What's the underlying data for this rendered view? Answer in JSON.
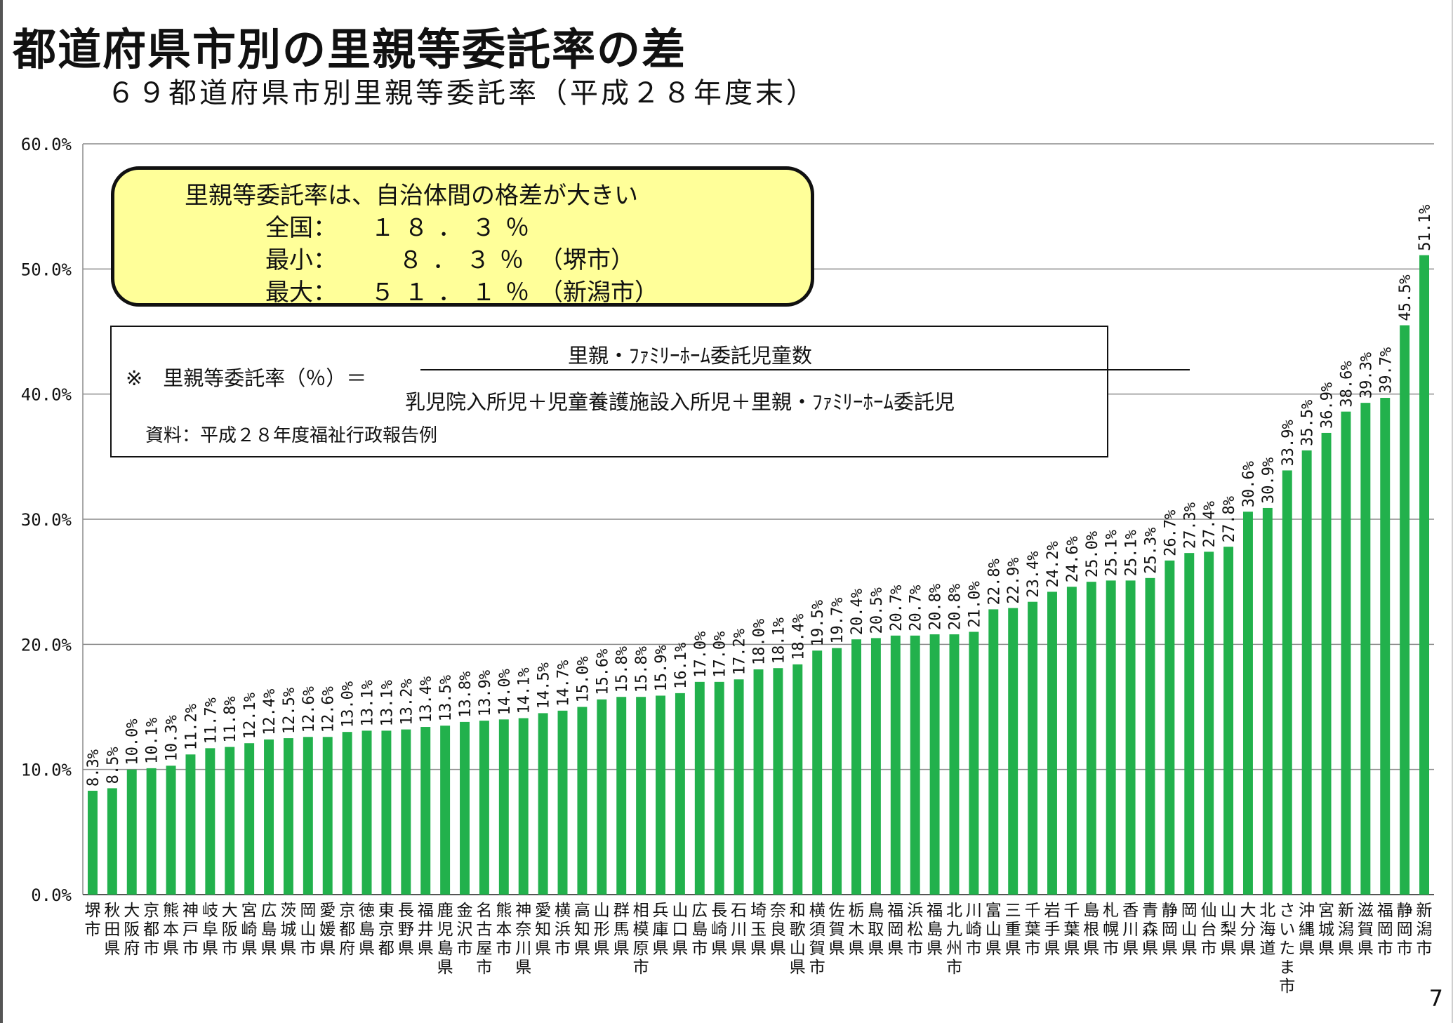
{
  "title": "都道府県市別の里親等委託率の差",
  "subtitle": "６９都道府県市別里親等委託率（平成２８年度末）",
  "callout": {
    "heading": "里親等委託率は、自治体間の格差が大きい",
    "rows": [
      {
        "label": "全国：",
        "value": "１８．３％",
        "note": ""
      },
      {
        "label": "最小：",
        "value": "８．３％",
        "note": "（堺市）"
      },
      {
        "label": "最大：",
        "value": "５１．１％",
        "note": "（新潟市）"
      }
    ]
  },
  "formula": {
    "lhs": "※　里親等委託率（％）＝",
    "numerator": "里親・ﾌｧﾐﾘｰﾎｰﾑ委託児童数",
    "denominator": "乳児院入所児＋児童養護施設入所児＋里親・ﾌｧﾐﾘｰﾎｰﾑ委託児",
    "source": "資料：平成２８年度福祉行政報告例"
  },
  "page_number": "7",
  "chart_data": {
    "type": "bar",
    "bar_color": "#22b14c",
    "grid": true,
    "ylim": [
      0,
      60
    ],
    "yticks": [
      "0.0%",
      "10.0%",
      "20.0%",
      "30.0%",
      "40.0%",
      "50.0%",
      "60.0%"
    ],
    "categories": [
      "堺市",
      "秋田県",
      "大阪府",
      "京都市",
      "熊本県",
      "神戸市",
      "岐阜県",
      "大阪市",
      "宮崎県",
      "広島県",
      "茨城県",
      "岡山市",
      "愛媛県",
      "京都府",
      "徳島県",
      "東京都",
      "長野県",
      "福井県",
      "鹿児島県",
      "金沢市",
      "名古屋市",
      "熊本市",
      "神奈川県",
      "愛知県",
      "横浜市",
      "高知県",
      "山形県",
      "群馬県",
      "相模原市",
      "兵庫県",
      "山口県",
      "広島市",
      "長崎県",
      "石川県",
      "埼玉県",
      "奈良県",
      "和歌山県",
      "横須賀市",
      "佐賀県",
      "栃木県",
      "鳥取県",
      "福岡県",
      "浜松市",
      "福島県",
      "北九州市",
      "川崎市",
      "富山県",
      "三重県",
      "千葉市",
      "岩手県",
      "千葉県",
      "島根県",
      "札幌市",
      "香川県",
      "青森県",
      "静岡県",
      "岡山県",
      "仙台市",
      "山梨県",
      "大分県",
      "北海道",
      "さいたま市",
      "沖縄県",
      "宮城県",
      "新潟県",
      "滋賀県",
      "福岡市",
      "静岡市",
      "新潟市"
    ],
    "values": [
      8.3,
      8.5,
      10.0,
      10.1,
      10.3,
      11.2,
      11.7,
      11.8,
      12.1,
      12.4,
      12.5,
      12.6,
      12.6,
      13.0,
      13.1,
      13.1,
      13.2,
      13.4,
      13.5,
      13.8,
      13.9,
      14.0,
      14.1,
      14.5,
      14.7,
      15.0,
      15.6,
      15.8,
      15.8,
      15.9,
      16.1,
      17.0,
      17.0,
      17.2,
      18.0,
      18.1,
      18.4,
      19.5,
      19.7,
      20.4,
      20.5,
      20.7,
      20.7,
      20.8,
      20.8,
      21.0,
      22.8,
      22.9,
      23.4,
      24.2,
      24.6,
      25.0,
      25.1,
      25.1,
      25.3,
      26.7,
      27.3,
      27.4,
      27.8,
      30.6,
      30.9,
      33.9,
      35.5,
      36.9,
      38.6,
      39.3,
      39.7,
      45.5,
      51.1
    ],
    "labels": [
      "8.3%",
      "8.5%",
      "10.0%",
      "10.1%",
      "10.3%",
      "11.2%",
      "11.7%",
      "11.8%",
      "12.1%",
      "12.4%",
      "12.5%",
      "12.6%",
      "12.6%",
      "13.0%",
      "13.1%",
      "13.1%",
      "13.2%",
      "13.4%",
      "13.5%",
      "13.8%",
      "13.9%",
      "14.0%",
      "14.1%",
      "14.5%",
      "14.7%",
      "15.0%",
      "15.6%",
      "15.8%",
      "15.8%",
      "15.9%",
      "16.1%",
      "17.0%",
      "17.0%",
      "17.2%",
      "18.0%",
      "18.1%",
      "18.4%",
      "19.5%",
      "19.7%",
      "20.4%",
      "20.5%",
      "20.7%",
      "20.7%",
      "20.8%",
      "20.8%",
      "21.0%",
      "22.8%",
      "22.9%",
      "23.4%",
      "24.2%",
      "24.6%",
      "25.0%",
      "25.1%",
      "25.1%",
      "25.3%",
      "26.7%",
      "27.3%",
      "27.4%",
      "27.8%",
      "30.6%",
      "30.9%",
      "33.9%",
      "35.5%",
      "36.9%",
      "38.6%",
      "39.3%",
      "39.7%",
      "45.5%",
      "51.1%"
    ]
  }
}
